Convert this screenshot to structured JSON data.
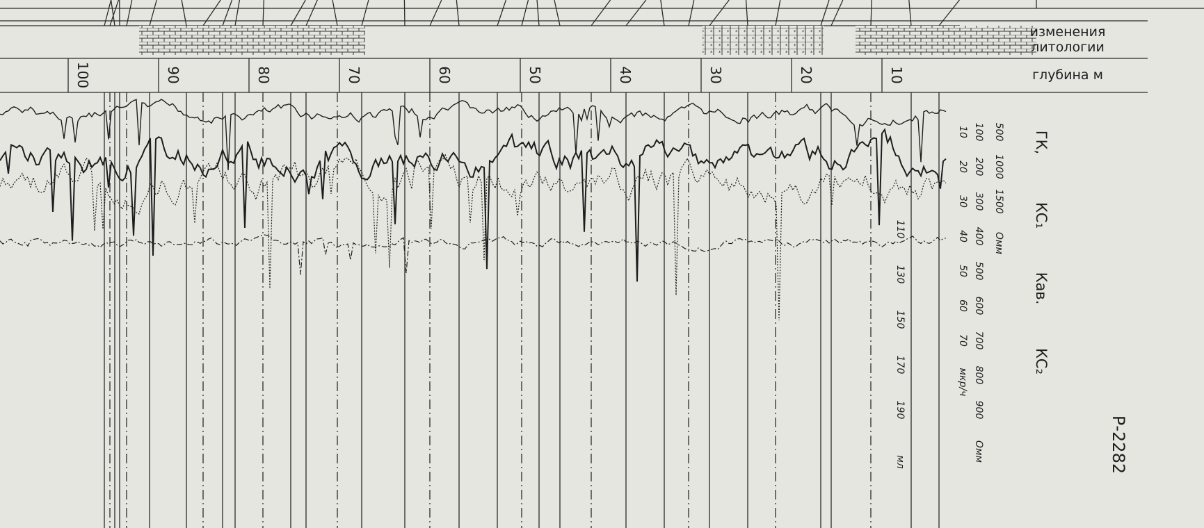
{
  "header": {
    "lithology_label": "изменения литологии",
    "depth_label": "глубина м"
  },
  "depth_marks": [
    100,
    90,
    80,
    70,
    60,
    50,
    40,
    30,
    20,
    10
  ],
  "legend": [
    "ГК,",
    "КС₁",
    "Кав.",
    "КС₂"
  ],
  "scales": {
    "gk": {
      "ticks": [
        10,
        20,
        30,
        40,
        50,
        60,
        70
      ],
      "unit": "мкр/ч"
    },
    "ks1": {
      "ticks": [
        100,
        200,
        300,
        400,
        500,
        600,
        700,
        800,
        900
      ],
      "unit": "Омм"
    },
    "ks2": {
      "ticks": [
        500,
        1000,
        1500
      ],
      "unit": "Омм"
    },
    "kav": {
      "ticks": [
        110,
        130,
        150,
        170,
        190
      ],
      "unit": "мл"
    }
  },
  "well_id": "Р-2282"
}
